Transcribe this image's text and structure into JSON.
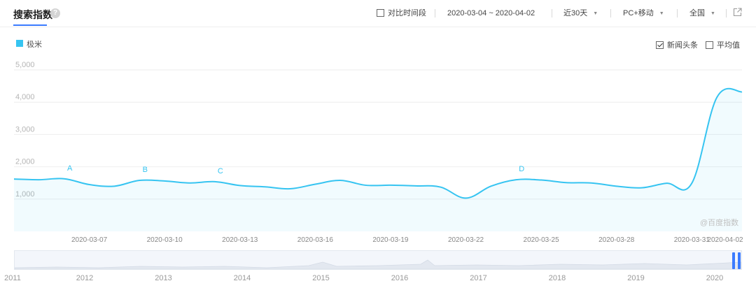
{
  "header": {
    "title": "搜索指数",
    "help_glyph": "?",
    "compare_label": "对比时间段",
    "date_range": "2020-03-04 ~ 2020-04-02",
    "period_label": "近30天",
    "device_label": "PC+移动",
    "region_label": "全国"
  },
  "legend": {
    "series_label": "极米",
    "series_color": "#36c4f1"
  },
  "options": {
    "news_label": "新闻头条",
    "news_checked": true,
    "average_label": "平均值",
    "average_checked": false
  },
  "watermark": "@百度指数",
  "chart_data": {
    "type": "area",
    "x": [
      "2020-03-04",
      "2020-03-05",
      "2020-03-06",
      "2020-03-07",
      "2020-03-08",
      "2020-03-09",
      "2020-03-10",
      "2020-03-11",
      "2020-03-12",
      "2020-03-13",
      "2020-03-14",
      "2020-03-15",
      "2020-03-16",
      "2020-03-17",
      "2020-03-18",
      "2020-03-19",
      "2020-03-20",
      "2020-03-21",
      "2020-03-22",
      "2020-03-23",
      "2020-03-24",
      "2020-03-25",
      "2020-03-26",
      "2020-03-27",
      "2020-03-28",
      "2020-03-29",
      "2020-03-30",
      "2020-03-31",
      "2020-04-01",
      "2020-04-02"
    ],
    "series": [
      {
        "name": "极米",
        "values": [
          1620,
          1600,
          1630,
          1450,
          1400,
          1580,
          1560,
          1500,
          1540,
          1420,
          1380,
          1320,
          1460,
          1580,
          1430,
          1430,
          1410,
          1370,
          1030,
          1400,
          1600,
          1590,
          1510,
          1500,
          1400,
          1350,
          1490,
          1490,
          4150,
          4320
        ]
      }
    ],
    "tick_labels": [
      "2020-03-07",
      "2020-03-10",
      "2020-03-13",
      "2020-03-16",
      "2020-03-19",
      "2020-03-22",
      "2020-03-25",
      "2020-03-28",
      "2020-03-31",
      "2020-04-02"
    ],
    "y_ticks": [
      1000,
      2000,
      3000,
      4000,
      5000
    ],
    "y_tick_labels": [
      "1,000",
      "2,000",
      "3,000",
      "4,000",
      "5,000"
    ],
    "ylim": [
      0,
      5000
    ],
    "grid": true,
    "legend_position": "top-left",
    "annotations": [
      {
        "label": "A",
        "x": "2020-03-06",
        "y": 1620
      },
      {
        "label": "B",
        "x": "2020-03-09",
        "y": 1580
      },
      {
        "label": "C",
        "x": "2020-03-12",
        "y": 1540
      },
      {
        "label": "D",
        "x": "2020-03-24",
        "y": 1600
      }
    ]
  },
  "overview": {
    "years": [
      "2011",
      "2012",
      "2013",
      "2014",
      "2015",
      "2016",
      "2017",
      "2018",
      "2019",
      "2020"
    ]
  }
}
